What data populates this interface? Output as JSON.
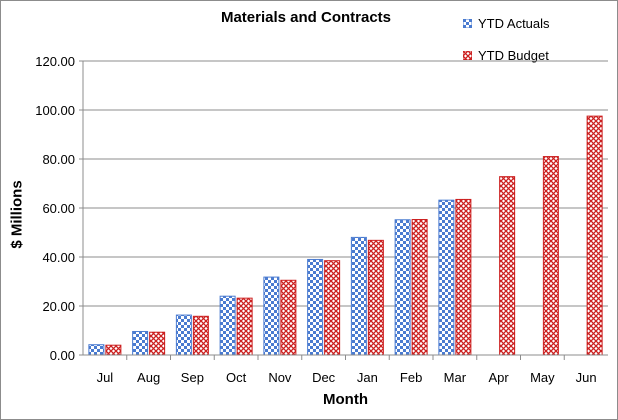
{
  "chart_data": {
    "type": "bar",
    "title": "Materials and Contracts",
    "xlabel": "Month",
    "ylabel": "$ Millions",
    "ylim": [
      0,
      120
    ],
    "yticks": [
      "0.00",
      "20.00",
      "40.00",
      "60.00",
      "80.00",
      "100.00",
      "120.00"
    ],
    "grid": true,
    "legend": "top-right",
    "categories": [
      "Jul",
      "Aug",
      "Sep",
      "Oct",
      "Nov",
      "Dec",
      "Jan",
      "Feb",
      "Mar",
      "Apr",
      "May",
      "Jun"
    ],
    "series": [
      {
        "name": "YTD Actuals",
        "color": "#4a7bd0",
        "pattern": "checkerboard",
        "values": [
          4.2,
          9.6,
          16.3,
          24.0,
          31.8,
          39.0,
          48.0,
          55.2,
          63.2,
          null,
          null,
          null
        ]
      },
      {
        "name": "YTD Budget",
        "color": "#cc1f1f",
        "pattern": "crosshatch",
        "values": [
          4.0,
          9.3,
          15.8,
          23.2,
          30.5,
          38.5,
          46.8,
          55.3,
          63.5,
          72.8,
          81.0,
          97.5
        ]
      }
    ]
  }
}
